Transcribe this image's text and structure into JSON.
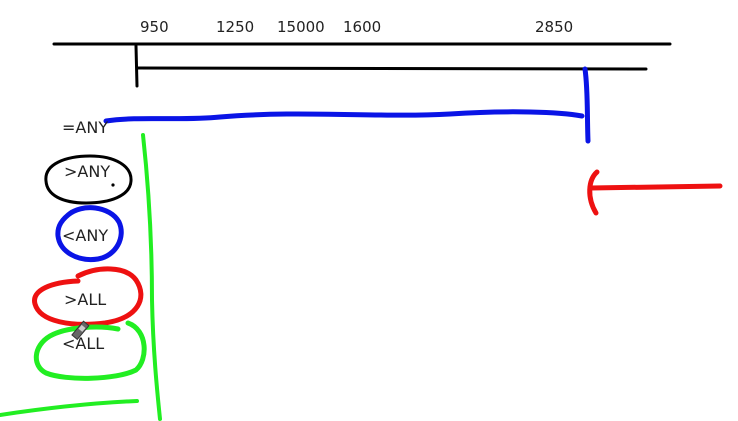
{
  "scale_labels": [
    "950",
    "1250",
    "15000",
    "1600",
    "2850"
  ],
  "operators": {
    "eq_any": "=ANY",
    "gt_any": ">ANY",
    "lt_any": "<ANY",
    "gt_all": ">ALL",
    "lt_all": "<ALL"
  },
  "colors": {
    "ink": "#000000",
    "blue": "#0a14e6",
    "red": "#ee1111",
    "green": "#22ee22",
    "text": "#222222"
  },
  "icons": {
    "cursor": "pen-cursor-icon"
  }
}
